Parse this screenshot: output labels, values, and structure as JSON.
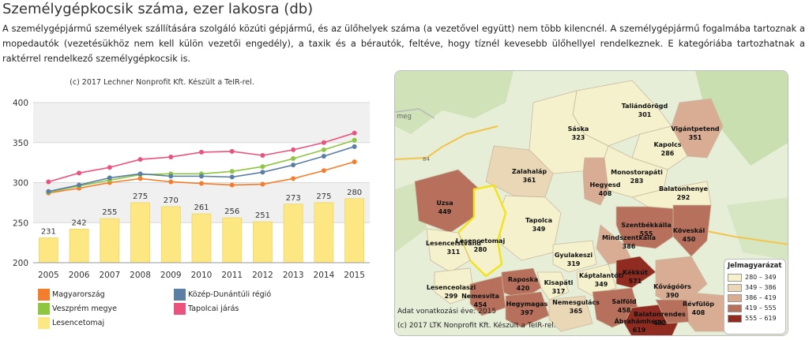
{
  "page": {
    "title": "Személygépkocsik száma, ezer lakosra (db)",
    "description": "A személygépjármű személyek szállítására szolgáló közúti gépjármű, és az ülőhelyek száma (a vezetővel együtt) nem több kilencnél. A személygépjármű fogalmába tartoznak a mopedautók (vezetésükhöz nem kell külön vezetői engedély), a taxik és a bérautók, feltéve, hogy tíznél kevesebb ülőhellyel rendelkeznek. E kategóriába tartozhatnak a raktérrel rendelkező személygépkocsik is."
  },
  "chart_data": {
    "type": "bar",
    "credit": "(c) 2017 Lechner Nonprofit Kft. Készült a TeIR-rel.",
    "categories": [
      "2005",
      "2006",
      "2007",
      "2008",
      "2009",
      "2010",
      "2011",
      "2012",
      "2013",
      "2014",
      "2015"
    ],
    "ylim": [
      200,
      400
    ],
    "yticks": [
      200,
      250,
      300,
      350,
      400
    ],
    "grid": true,
    "legend_position": "bottom",
    "series": [
      {
        "name": "Lesencetomaj",
        "type": "bar",
        "color": "#fde782",
        "values": [
          231,
          242,
          255,
          275,
          270,
          261,
          256,
          251,
          273,
          275,
          280
        ]
      },
      {
        "name": "Magyarország",
        "type": "line",
        "color": "#f47d2b",
        "values": [
          287,
          293,
          300,
          305,
          301,
          299,
          297,
          298,
          305,
          315,
          326
        ]
      },
      {
        "name": "Veszprém megye",
        "type": "line",
        "color": "#8dc63f",
        "values": [
          288,
          296,
          303,
          310,
          311,
          311,
          314,
          320,
          330,
          341,
          353
        ]
      },
      {
        "name": "Közép-Dunántúli régió",
        "type": "line",
        "color": "#5b7fa4",
        "values": [
          289,
          297,
          306,
          311,
          308,
          308,
          307,
          313,
          322,
          333,
          345
        ]
      },
      {
        "name": "Tapolcai járás",
        "type": "line",
        "color": "#e9537d",
        "values": [
          301,
          312,
          319,
          329,
          332,
          338,
          339,
          334,
          341,
          350,
          362
        ]
      }
    ],
    "legend_order": [
      "Magyarország",
      "Közép-Dunántúli régió",
      "Veszprém megye",
      "Tapolcai járás",
      "Lesencetomaj"
    ]
  },
  "map": {
    "source_year": "Adat vonatkozási éve: 2015",
    "credit": "(c) 2017 LTK Nonprofit Kft. Készült a TeIR-rel.",
    "legend_title": "Jelmagyarázat",
    "legend_items": [
      {
        "label": "280 – 349",
        "color": "#f4f1cc"
      },
      {
        "label": "349 – 386",
        "color": "#ead7b6"
      },
      {
        "label": "386 – 419",
        "color": "#d9ad93"
      },
      {
        "label": "419 – 555",
        "color": "#b6705c"
      },
      {
        "label": "555 – 619",
        "color": "#8f2b20"
      }
    ],
    "background_labels": [
      "meg",
      "84"
    ],
    "settlements": [
      {
        "name": "Taliándörögd",
        "value": "301"
      },
      {
        "name": "Sáska",
        "value": "323"
      },
      {
        "name": "Vigántpetend",
        "value": "351"
      },
      {
        "name": "Kapolcs",
        "value": "286"
      },
      {
        "name": "Zalahaláp",
        "value": "361"
      },
      {
        "name": "Monostorapáti",
        "value": "283"
      },
      {
        "name": "Hegyesd",
        "value": "408"
      },
      {
        "name": "Balatonhenye",
        "value": "292"
      },
      {
        "name": "Uzsa",
        "value": "449"
      },
      {
        "name": "Tapolca",
        "value": "349"
      },
      {
        "name": "Szentbékkálla",
        "value": "555"
      },
      {
        "name": "Köveskál",
        "value": "450"
      },
      {
        "name": "Lesencetomaj",
        "value": "280"
      },
      {
        "name": "Lesenceistvánd",
        "value": "311"
      },
      {
        "name": "Mindszentkálla",
        "value": "386"
      },
      {
        "name": "Gyulakeszi",
        "value": "319"
      },
      {
        "name": "Káptalantóti",
        "value": "349"
      },
      {
        "name": "Kékkút",
        "value": "571"
      },
      {
        "name": "Raposka",
        "value": "420"
      },
      {
        "name": "Kisapáti",
        "value": "317"
      },
      {
        "name": "Lesenceolaszi",
        "value": "299"
      },
      {
        "name": "Nemesvita",
        "value": "454"
      },
      {
        "name": "Hegymagas",
        "value": "397"
      },
      {
        "name": "Nemesgulács",
        "value": "365"
      },
      {
        "name": "Salföld",
        "value": "458"
      },
      {
        "name": "Kővágóörs",
        "value": "390"
      },
      {
        "name": "Révfülöp",
        "value": "408"
      },
      {
        "name": "Balatonrendes",
        "value": "432"
      },
      {
        "name": "Ábrahámhegy",
        "value": "619"
      }
    ]
  }
}
